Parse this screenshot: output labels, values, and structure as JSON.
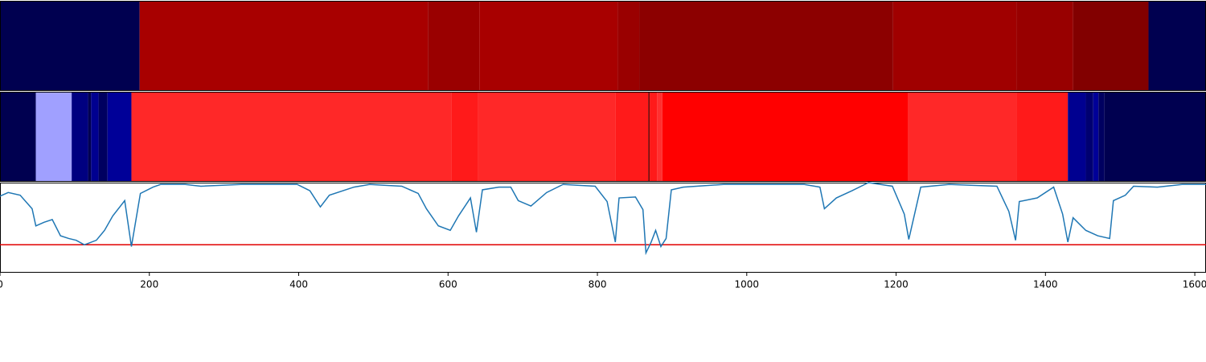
{
  "chart_data": [
    {
      "type": "strip",
      "xlim": [
        0,
        1615
      ],
      "bins": [
        0,
        187,
        573,
        642,
        827,
        856,
        1196,
        1361,
        1437,
        1538,
        1615
      ],
      "colors": [
        "#000050",
        "#a80000",
        "#9a0000",
        "#a80000",
        "#9a0000",
        "#8c0000",
        "#a00000",
        "#980000",
        "#820000",
        "#000050"
      ]
    },
    {
      "type": "strip",
      "xlim": [
        0,
        1615
      ],
      "bins": [
        0,
        48,
        96,
        118,
        122,
        132,
        144,
        176,
        605,
        640,
        824,
        868,
        870,
        880,
        887,
        1216,
        1361,
        1430,
        1454,
        1464,
        1471,
        1479,
        1615
      ],
      "colors": [
        "#000050",
        "#a0a0ff",
        "#000080",
        "#000050",
        "#000090",
        "#000060",
        "#000098",
        "#ff2828",
        "#ff1a1a",
        "#ff2828",
        "#ff1a1a",
        "#800000",
        "#ff1a1a",
        "#ff3030",
        "#ff0000",
        "#ff2828",
        "#ff1a1a",
        "#000090",
        "#000070",
        "#000098",
        "#000060",
        "#000050"
      ]
    },
    {
      "type": "line",
      "xlim": [
        0,
        1615
      ],
      "ylim": [
        0,
        1
      ],
      "xticks": [
        0,
        200,
        400,
        600,
        800,
        1000,
        1200,
        1400,
        1600
      ],
      "hline": 0.31,
      "hline_color": "#e00000",
      "series": [
        {
          "color": "#1f77b4",
          "x": [
            0,
            11,
            27,
            43,
            48,
            59,
            70,
            81,
            92,
            102,
            113,
            129,
            140,
            151,
            167,
            176,
            188,
            205,
            215,
            248,
            269,
            323,
            398,
            415,
            429,
            441,
            474,
            495,
            538,
            560,
            571,
            587,
            603,
            614,
            630,
            638,
            646,
            668,
            684,
            694,
            711,
            732,
            754,
            797,
            813,
            824,
            829,
            851,
            861,
            865,
            872,
            878,
            885,
            892,
            899,
            915,
            969,
            1077,
            1098,
            1104,
            1120,
            1141,
            1163,
            1195,
            1211,
            1217,
            1233,
            1271,
            1335,
            1351,
            1360,
            1365,
            1389,
            1411,
            1423,
            1430,
            1437,
            1454,
            1470,
            1486,
            1491,
            1507,
            1518,
            1550,
            1583,
            1615
          ],
          "values": [
            0.85,
            0.89,
            0.86,
            0.71,
            0.52,
            0.56,
            0.59,
            0.41,
            0.38,
            0.36,
            0.31,
            0.36,
            0.47,
            0.63,
            0.8,
            0.29,
            0.88,
            0.95,
            0.98,
            0.98,
            0.96,
            0.98,
            0.98,
            0.91,
            0.73,
            0.86,
            0.95,
            0.98,
            0.96,
            0.88,
            0.71,
            0.52,
            0.47,
            0.63,
            0.83,
            0.45,
            0.92,
            0.95,
            0.95,
            0.8,
            0.74,
            0.89,
            0.98,
            0.96,
            0.79,
            0.34,
            0.83,
            0.84,
            0.7,
            0.22,
            0.34,
            0.47,
            0.29,
            0.38,
            0.92,
            0.95,
            0.98,
            0.98,
            0.95,
            0.71,
            0.83,
            0.91,
            1.0,
            0.96,
            0.65,
            0.37,
            0.95,
            0.98,
            0.96,
            0.68,
            0.36,
            0.79,
            0.83,
            0.95,
            0.65,
            0.34,
            0.61,
            0.47,
            0.41,
            0.38,
            0.8,
            0.86,
            0.96,
            0.95,
            0.98,
            0.98
          ]
        }
      ]
    }
  ]
}
